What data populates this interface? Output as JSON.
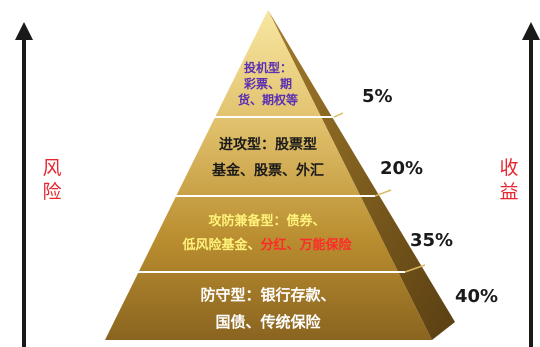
{
  "left_label": [
    "风",
    "险"
  ],
  "right_label": [
    "收",
    "益"
  ],
  "tiers": [
    {
      "lines": [
        "投机型：",
        "彩票、期",
        "货、期权等"
      ],
      "percent": "5%",
      "color": "#5b2fb3"
    },
    {
      "lines": [
        "进攻型：股票型",
        "基金、股票、外汇"
      ],
      "percent": "20%",
      "color": "#1a1a1a"
    },
    {
      "line1": "攻防兼备型：债券、",
      "line2a": "低风险基金、",
      "line2b": "分红、万能保险",
      "percent": "35%",
      "color_main": "#fff27a",
      "color_highlight": "#ff2a2a"
    },
    {
      "lines": [
        "防守型：银行存款、",
        "国债、传统保险"
      ],
      "percent": "40%",
      "color": "#ffffff"
    }
  ],
  "colors": {
    "pyramid_light": "#f6e39a",
    "pyramid_mid": "#c79a34",
    "pyramid_dark": "#7a5a1c",
    "arrow": "#1a1a1a",
    "side_label": "#e8262f"
  }
}
